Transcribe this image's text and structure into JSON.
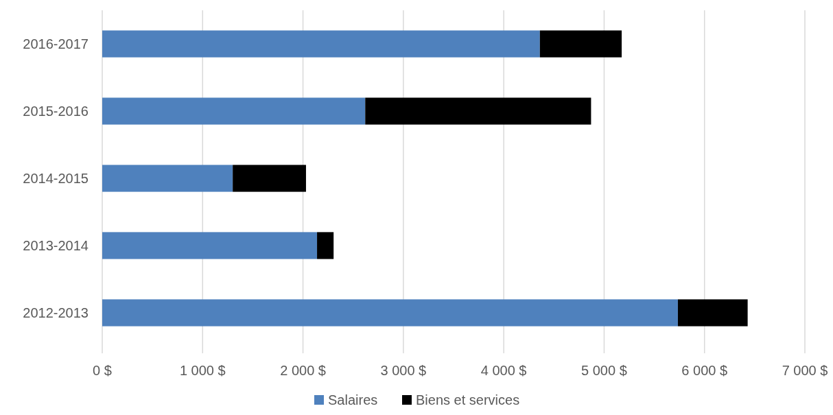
{
  "chart_data": {
    "type": "bar",
    "orientation": "horizontal",
    "stacked": true,
    "categories": [
      "2016-2017",
      "2015-2016",
      "2014-2015",
      "2013-2014",
      "2012-2013"
    ],
    "series": [
      {
        "name": "Salaires",
        "color": "#4f81bd",
        "values": [
          4360,
          2620,
          1300,
          2140,
          5735
        ]
      },
      {
        "name": "Biens et services",
        "color": "#000000",
        "values": [
          815,
          2250,
          730,
          165,
          695
        ]
      }
    ],
    "xlim": [
      0,
      7000
    ],
    "xticks": [
      {
        "value": 0,
        "label": "0 $"
      },
      {
        "value": 1000,
        "label": "1 000 $"
      },
      {
        "value": 2000,
        "label": "2 000 $"
      },
      {
        "value": 3000,
        "label": "3 000 $"
      },
      {
        "value": 4000,
        "label": "4 000 $"
      },
      {
        "value": 5000,
        "label": "5 000 $"
      },
      {
        "value": 6000,
        "label": "6 000 $"
      },
      {
        "value": 7000,
        "label": "7 000 $"
      }
    ],
    "grid": "x",
    "legend": "bottom"
  }
}
